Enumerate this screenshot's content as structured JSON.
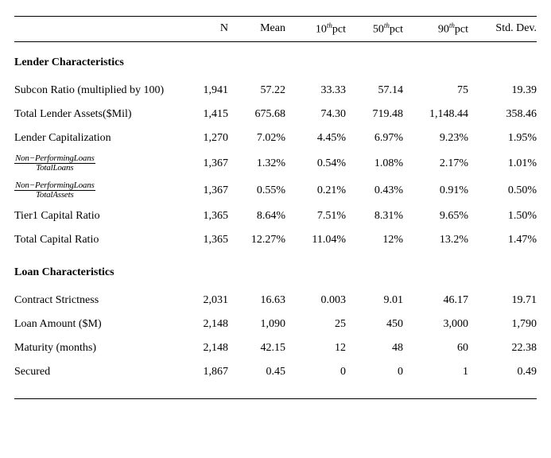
{
  "headers": {
    "c0": "",
    "c1": "N",
    "c2": "Mean",
    "c3_pre": "10",
    "c3_sup": "th",
    "c3_post": "pct",
    "c4_pre": "50",
    "c4_sup": "th",
    "c4_post": "pct",
    "c5_pre": "90",
    "c5_sup": "th",
    "c5_post": "pct",
    "c6": "Std. Dev."
  },
  "sections": {
    "s1": {
      "title": "Lender Characteristics"
    },
    "s2": {
      "title": "Loan Characteristics"
    }
  },
  "rows": {
    "r1": {
      "label": "Subcon Ratio (multiplied by 100)",
      "N": "1,941",
      "mean": "57.22",
      "p10": "33.33",
      "p50": "57.14",
      "p90": "75",
      "sd": "19.39"
    },
    "r2": {
      "label": "Total Lender Assets($Mil)",
      "N": "1,415",
      "mean": "675.68",
      "p10": "74.30",
      "p50": "719.48",
      "p90": "1,148.44",
      "sd": "358.46"
    },
    "r3": {
      "label": "Lender Capitalization",
      "N": "1,270",
      "mean": "7.02%",
      "p10": "4.45%",
      "p50": "6.97%",
      "p90": "9.23%",
      "sd": "1.95%"
    },
    "r4": {
      "num": "Non−PerformingLoans",
      "den": "TotalLoans",
      "N": "1,367",
      "mean": "1.32%",
      "p10": "0.54%",
      "p50": "1.08%",
      "p90": "2.17%",
      "sd": "1.01%"
    },
    "r5": {
      "num": "Non−PerformingLoans",
      "den": "TotalAssets",
      "N": "1,367",
      "mean": "0.55%",
      "p10": "0.21%",
      "p50": "0.43%",
      "p90": "0.91%",
      "sd": "0.50%"
    },
    "r6": {
      "label": "Tier1 Capital Ratio",
      "N": "1,365",
      "mean": "8.64%",
      "p10": "7.51%",
      "p50": "8.31%",
      "p90": "9.65%",
      "sd": "1.50%"
    },
    "r7": {
      "label": "Total Capital Ratio",
      "N": "1,365",
      "mean": "12.27%",
      "p10": "11.04%",
      "p50": "12%",
      "p90": "13.2%",
      "sd": "1.47%"
    },
    "r8": {
      "label": "Contract Strictness",
      "N": "2,031",
      "mean": "16.63",
      "p10": "0.003",
      "p50": "9.01",
      "p90": "46.17",
      "sd": "19.71"
    },
    "r9": {
      "label": "Loan Amount ($M)",
      "N": "2,148",
      "mean": "1,090",
      "p10": "25",
      "p50": "450",
      "p90": "3,000",
      "sd": "1,790"
    },
    "r10": {
      "label": "Maturity (months)",
      "N": "2,148",
      "mean": "42.15",
      "p10": "12",
      "p50": "48",
      "p90": "60",
      "sd": "22.38"
    },
    "r11": {
      "label": "Secured",
      "N": "1,867",
      "mean": "0.45",
      "p10": "0",
      "p50": "0",
      "p90": "1",
      "sd": "0.49"
    }
  },
  "style": {
    "font_family": "Times New Roman",
    "base_fontsize": 14,
    "bg_color": "#ffffff",
    "text_color": "#000000",
    "rule_color": "#000000"
  }
}
